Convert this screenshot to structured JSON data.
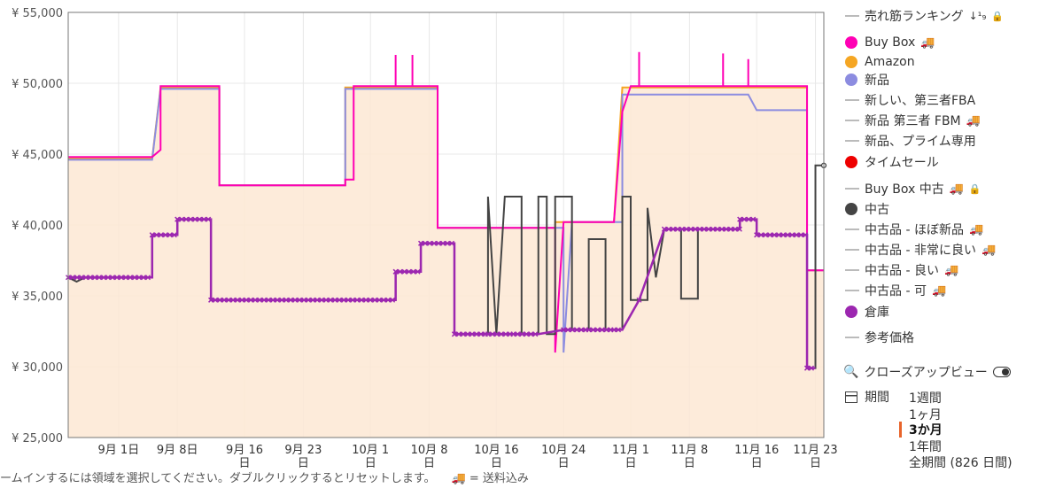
{
  "chart_data": {
    "type": "line",
    "title": "",
    "xlabel": "",
    "ylabel": "",
    "ylim": [
      25000,
      55000
    ],
    "y_ticks": [
      "¥ 25,000",
      "¥ 30,000",
      "¥ 35,000",
      "¥ 40,000",
      "¥ 45,000",
      "¥ 50,000",
      "¥ 55,000"
    ],
    "y_tick_values": [
      25000,
      30000,
      35000,
      40000,
      45000,
      50000,
      55000
    ],
    "x_range": [
      "2023-08-26",
      "2023-11-24"
    ],
    "x_ticks": [
      {
        "date": "2023-09-01",
        "line1": "9月 1日",
        "line2": ""
      },
      {
        "date": "2023-09-08",
        "line1": "9月 8日",
        "line2": ""
      },
      {
        "date": "2023-09-16",
        "line1": "9月 16",
        "line2": "日"
      },
      {
        "date": "2023-09-23",
        "line1": "9月 23",
        "line2": "日"
      },
      {
        "date": "2023-10-01",
        "line1": "10月 1",
        "line2": "日"
      },
      {
        "date": "2023-10-08",
        "line1": "10月 8",
        "line2": "日"
      },
      {
        "date": "2023-10-16",
        "line1": "10月 16",
        "line2": "日"
      },
      {
        "date": "2023-10-24",
        "line1": "10月 24",
        "line2": "日"
      },
      {
        "date": "2023-11-01",
        "line1": "11月 1",
        "line2": "日"
      },
      {
        "date": "2023-11-08",
        "line1": "11月 8",
        "line2": "日"
      },
      {
        "date": "2023-11-16",
        "line1": "11月 16",
        "line2": "日"
      },
      {
        "date": "2023-11-23",
        "line1": "11月 23",
        "line2": "日"
      }
    ],
    "grid": true,
    "legend_position": "right",
    "series": [
      {
        "name": "Amazon",
        "color": "#f5a623",
        "fill": "#fde7d4",
        "points": [
          [
            "2023-08-26",
            44700
          ],
          [
            "2023-09-05",
            44700
          ],
          [
            "2023-09-06",
            49700
          ],
          [
            "2023-09-13",
            49700
          ],
          [
            "2023-09-13",
            42800
          ],
          [
            "2023-09-28",
            42800
          ],
          [
            "2023-09-28",
            49700
          ],
          [
            "2023-10-09",
            49700
          ],
          [
            "2023-10-09",
            39800
          ],
          [
            "2023-10-23",
            39800
          ],
          [
            "2023-10-23",
            40200
          ],
          [
            "2023-10-30",
            40200
          ],
          [
            "2023-10-31",
            49700
          ],
          [
            "2023-11-22",
            49700
          ],
          [
            "2023-11-22",
            36800
          ],
          [
            "2023-11-24",
            36800
          ]
        ]
      },
      {
        "name": "Buy Box",
        "color": "#ff00b4",
        "points": [
          [
            "2023-08-26",
            44800
          ],
          [
            "2023-09-05",
            44800
          ],
          [
            "2023-09-06",
            45300
          ],
          [
            "2023-09-06",
            49800
          ],
          [
            "2023-09-13",
            49800
          ],
          [
            "2023-09-13",
            42800
          ],
          [
            "2023-09-28",
            42800
          ],
          [
            "2023-09-28",
            43200
          ],
          [
            "2023-09-29",
            43200
          ],
          [
            "2023-09-29",
            49800
          ],
          [
            "2023-10-04",
            49800
          ],
          [
            "2023-10-04",
            52000
          ],
          [
            "2023-10-04",
            49800
          ],
          [
            "2023-10-06",
            49800
          ],
          [
            "2023-10-06",
            52000
          ],
          [
            "2023-10-06",
            49800
          ],
          [
            "2023-10-09",
            49800
          ],
          [
            "2023-10-09",
            39800
          ],
          [
            "2023-10-23",
            39800
          ],
          [
            "2023-10-23",
            31000
          ],
          [
            "2023-10-24",
            40200
          ],
          [
            "2023-10-30",
            40200
          ],
          [
            "2023-10-31",
            48000
          ],
          [
            "2023-11-01",
            49800
          ],
          [
            "2023-11-02",
            49800
          ],
          [
            "2023-11-02",
            52200
          ],
          [
            "2023-11-02",
            49800
          ],
          [
            "2023-11-12",
            49800
          ],
          [
            "2023-11-12",
            52100
          ],
          [
            "2023-11-12",
            49800
          ],
          [
            "2023-11-15",
            49800
          ],
          [
            "2023-11-15",
            51700
          ],
          [
            "2023-11-15",
            49800
          ],
          [
            "2023-11-22",
            49800
          ],
          [
            "2023-11-22",
            36800
          ],
          [
            "2023-11-24",
            36800
          ]
        ]
      },
      {
        "name": "新品",
        "color": "#8c8ce0",
        "points": [
          [
            "2023-08-26",
            44600
          ],
          [
            "2023-09-05",
            44600
          ],
          [
            "2023-09-06",
            49600
          ],
          [
            "2023-09-13",
            49600
          ],
          [
            "2023-09-13",
            42800
          ],
          [
            "2023-09-28",
            42800
          ],
          [
            "2023-09-28",
            49600
          ],
          [
            "2023-10-09",
            49600
          ],
          [
            "2023-10-09",
            39800
          ],
          [
            "2023-10-24",
            39800
          ],
          [
            "2023-10-24",
            31000
          ],
          [
            "2023-10-25",
            40200
          ],
          [
            "2023-10-31",
            40200
          ],
          [
            "2023-10-31",
            49200
          ],
          [
            "2023-11-15",
            49200
          ],
          [
            "2023-11-16",
            48100
          ],
          [
            "2023-11-22",
            48100
          ],
          [
            "2023-11-22",
            36800
          ],
          [
            "2023-11-24",
            36800
          ]
        ]
      },
      {
        "name": "中古",
        "color": "#444444",
        "points": [
          [
            "2023-08-26",
            36300
          ],
          [
            "2023-08-27",
            36000
          ],
          [
            "2023-08-28",
            36300
          ],
          [
            "2023-09-05",
            36300
          ],
          [
            "2023-09-05",
            39300
          ],
          [
            "2023-09-08",
            39300
          ],
          [
            "2023-09-08",
            40400
          ],
          [
            "2023-09-12",
            40400
          ],
          [
            "2023-09-12",
            34700
          ],
          [
            "2023-10-04",
            34700
          ],
          [
            "2023-10-04",
            36700
          ],
          [
            "2023-10-07",
            36700
          ],
          [
            "2023-10-07",
            38700
          ],
          [
            "2023-10-11",
            38700
          ],
          [
            "2023-10-11",
            32300
          ],
          [
            "2023-10-15",
            32300
          ],
          [
            "2023-10-15",
            42000
          ],
          [
            "2023-10-16",
            32300
          ],
          [
            "2023-10-17",
            42000
          ],
          [
            "2023-10-19",
            42000
          ],
          [
            "2023-10-19",
            32300
          ],
          [
            "2023-10-21",
            32300
          ],
          [
            "2023-10-21",
            42000
          ],
          [
            "2023-10-22",
            42000
          ],
          [
            "2023-10-22",
            32300
          ],
          [
            "2023-10-23",
            32300
          ],
          [
            "2023-10-23",
            42000
          ],
          [
            "2023-10-25",
            42000
          ],
          [
            "2023-10-25",
            32600
          ],
          [
            "2023-10-27",
            32600
          ],
          [
            "2023-10-27",
            39000
          ],
          [
            "2023-10-29",
            39000
          ],
          [
            "2023-10-29",
            32600
          ],
          [
            "2023-10-31",
            32600
          ],
          [
            "2023-10-31",
            42000
          ],
          [
            "2023-11-01",
            42000
          ],
          [
            "2023-11-01",
            34700
          ],
          [
            "2023-11-03",
            34700
          ],
          [
            "2023-11-03",
            41200
          ],
          [
            "2023-11-04",
            36300
          ],
          [
            "2023-11-05",
            39700
          ],
          [
            "2023-11-07",
            39700
          ],
          [
            "2023-11-07",
            34800
          ],
          [
            "2023-11-09",
            34800
          ],
          [
            "2023-11-09",
            39700
          ],
          [
            "2023-11-14",
            39700
          ],
          [
            "2023-11-14",
            40400
          ],
          [
            "2023-11-16",
            40400
          ],
          [
            "2023-11-16",
            39300
          ],
          [
            "2023-11-22",
            39300
          ],
          [
            "2023-11-22",
            29900
          ],
          [
            "2023-11-23",
            29900
          ],
          [
            "2023-11-23",
            44200
          ],
          [
            "2023-11-24",
            44200
          ]
        ]
      },
      {
        "name": "倉庫",
        "color": "#9c27b0",
        "points": [
          [
            "2023-08-26",
            36300
          ],
          [
            "2023-09-05",
            36300
          ],
          [
            "2023-09-05",
            39300
          ],
          [
            "2023-09-08",
            39300
          ],
          [
            "2023-09-08",
            40400
          ],
          [
            "2023-09-12",
            40400
          ],
          [
            "2023-09-12",
            34700
          ],
          [
            "2023-10-04",
            34700
          ],
          [
            "2023-10-04",
            36700
          ],
          [
            "2023-10-07",
            36700
          ],
          [
            "2023-10-07",
            38700
          ],
          [
            "2023-10-11",
            38700
          ],
          [
            "2023-10-11",
            32300
          ],
          [
            "2023-10-15",
            32300
          ],
          [
            "2023-10-18",
            32300
          ],
          [
            "2023-10-21",
            32300
          ],
          [
            "2023-10-24",
            32600
          ],
          [
            "2023-10-27",
            32600
          ],
          [
            "2023-10-30",
            32600
          ],
          [
            "2023-10-31",
            32600
          ],
          [
            "2023-11-02",
            34700
          ],
          [
            "2023-11-05",
            39700
          ],
          [
            "2023-11-14",
            39700
          ],
          [
            "2023-11-14",
            40400
          ],
          [
            "2023-11-16",
            40400
          ],
          [
            "2023-11-16",
            39300
          ],
          [
            "2023-11-22",
            39300
          ],
          [
            "2023-11-22",
            29900
          ],
          [
            "2023-11-23",
            29900
          ]
        ]
      }
    ]
  },
  "legend": {
    "items": [
      {
        "label": "売れ筋ランキング",
        "swatch": "line",
        "color": "#bbbbbb",
        "extra": "↓¹₉",
        "lock": true,
        "truck": false
      },
      {
        "label": "Buy Box",
        "swatch": "dot",
        "color": "#ff00b4",
        "truck": true,
        "lock": false
      },
      {
        "label": "Amazon",
        "swatch": "dot",
        "color": "#f5a623",
        "truck": false,
        "lock": false
      },
      {
        "label": "新品",
        "swatch": "dot",
        "color": "#8c8ce0",
        "truck": false,
        "lock": false
      },
      {
        "label": "新しい、第三者FBA",
        "swatch": "line",
        "color": "#bbbbbb",
        "truck": false,
        "lock": false
      },
      {
        "label": "新品 第三者 FBM",
        "swatch": "line",
        "color": "#bbbbbb",
        "truck": true,
        "lock": false
      },
      {
        "label": "新品、プライム専用",
        "swatch": "line",
        "color": "#bbbbbb",
        "truck": false,
        "lock": false
      },
      {
        "label": "タイムセール",
        "swatch": "dot",
        "color": "#ee0000",
        "truck": false,
        "lock": false
      },
      {
        "label": "Buy Box 中古",
        "swatch": "line",
        "color": "#bbbbbb",
        "truck": true,
        "lock": true
      },
      {
        "label": "中古",
        "swatch": "dot",
        "color": "#444444",
        "truck": false,
        "lock": false
      },
      {
        "label": "中古品 - ほぼ新品",
        "swatch": "line",
        "color": "#bbbbbb",
        "truck": true,
        "lock": false
      },
      {
        "label": "中古品 - 非常に良い",
        "swatch": "line",
        "color": "#bbbbbb",
        "truck": true,
        "lock": false
      },
      {
        "label": "中古品 - 良い",
        "swatch": "line",
        "color": "#bbbbbb",
        "truck": true,
        "lock": false
      },
      {
        "label": "中古品 - 可",
        "swatch": "line",
        "color": "#bbbbbb",
        "truck": true,
        "lock": false
      },
      {
        "label": "倉庫",
        "swatch": "dot",
        "color": "#9c27b0",
        "truck": false,
        "lock": false
      },
      {
        "label": "参考価格",
        "swatch": "line",
        "color": "#bbbbbb",
        "truck": false,
        "lock": false
      }
    ],
    "closeup_label": "クローズアップビュー",
    "period_label": "期間",
    "period_options": [
      "1週間",
      "1ヶ月",
      "3か月",
      "1年間",
      "全期間 (826 日間)"
    ],
    "period_selected": "3か月"
  },
  "hint": {
    "text": "ームインするには領域を選択してください。ダブルクリックするとリセットします。",
    "truck_note": "🚚 = 送料込み"
  }
}
